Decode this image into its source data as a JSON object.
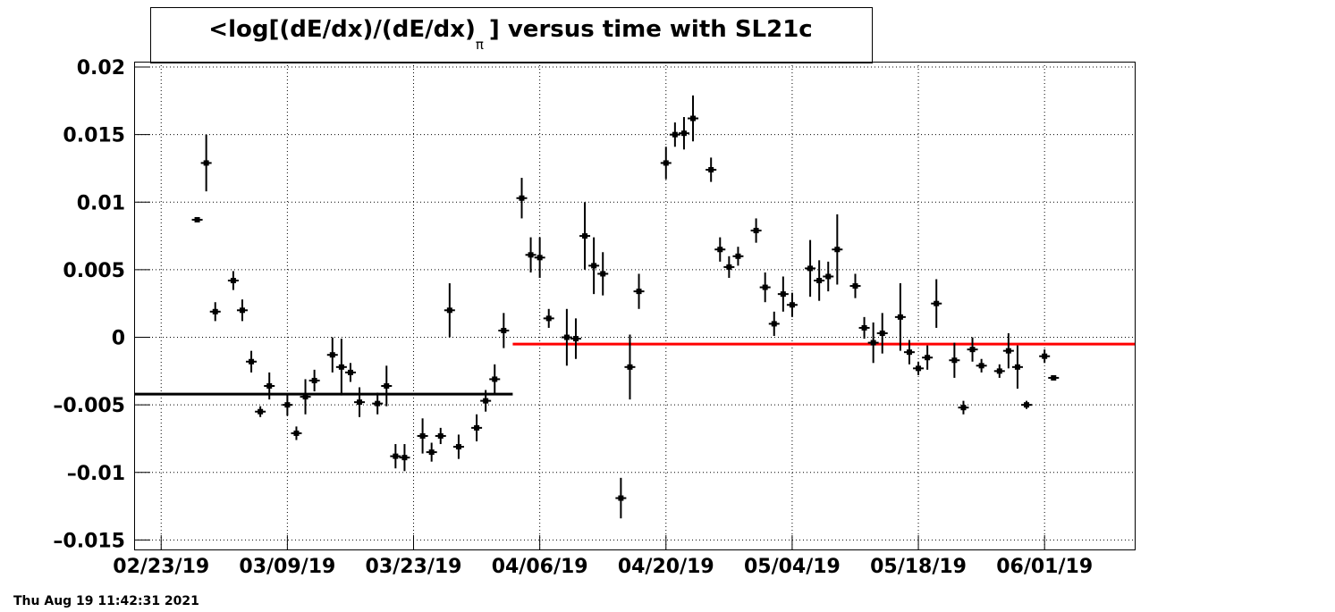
{
  "chart_data": {
    "type": "errorbar",
    "title": "<log[(dE/dx)/(dE/dx)",
    "title_subscript": "π",
    "title_end": "] versus time with SL21c",
    "footer": "Thu Aug 19 11:42:31 2021",
    "xlim": [
      "02/20/19",
      "06/11/19"
    ],
    "xticks": [
      "02/23/19",
      "03/09/19",
      "03/23/19",
      "04/06/19",
      "04/20/19",
      "05/04/19",
      "05/18/19",
      "06/01/19"
    ],
    "ylim": [
      -0.0157,
      0.0204
    ],
    "yticks": [
      {
        "value": -0.015,
        "label": "–0.015"
      },
      {
        "value": -0.01,
        "label": "–0.01"
      },
      {
        "value": -0.005,
        "label": "–0.005"
      },
      0,
      0.005,
      0.01,
      0.015,
      0.02
    ],
    "grid": true,
    "series": [
      {
        "color": "#000000",
        "x": [
          "02/27/19",
          "02/28/19",
          "03/01/19",
          "03/03/19",
          "03/04/19",
          "03/05/19",
          "03/06/19",
          "03/07/19",
          "03/09/19",
          "03/10/19",
          "03/11/19",
          "03/12/19",
          "03/14/19",
          "03/15/19",
          "03/16/19",
          "03/17/19",
          "03/19/19",
          "03/20/19",
          "03/21/19",
          "03/22/19",
          "03/24/19",
          "03/25/19",
          "03/26/19",
          "03/27/19",
          "03/28/19",
          "03/30/19",
          "03/31/19",
          "04/01/19",
          "04/02/19",
          "04/04/19",
          "04/05/19",
          "04/06/19",
          "04/07/19",
          "04/09/19",
          "04/10/19",
          "04/11/19",
          "04/12/19",
          "04/13/19",
          "04/15/19",
          "04/16/19",
          "04/17/19",
          "04/20/19",
          "04/21/19",
          "04/22/19",
          "04/23/19",
          "04/25/19",
          "04/26/19",
          "04/27/19",
          "04/28/19",
          "04/30/19",
          "05/01/19",
          "05/02/19",
          "05/03/19",
          "05/04/19",
          "05/06/19",
          "05/07/19",
          "05/08/19",
          "05/09/19",
          "05/11/19",
          "05/12/19",
          "05/13/19",
          "05/14/19",
          "05/16/19",
          "05/17/19",
          "05/18/19",
          "05/19/19",
          "05/20/19",
          "05/22/19",
          "05/23/19",
          "05/24/19",
          "05/25/19",
          "05/27/19",
          "05/28/19",
          "05/29/19",
          "05/30/19",
          "06/01/19",
          "06/02/19"
        ],
        "values": [
          0.0087,
          0.0129,
          0.0019,
          0.0042,
          0.002,
          -0.0018,
          -0.0055,
          -0.0036,
          -0.005,
          -0.0071,
          -0.0044,
          -0.0032,
          -0.0013,
          -0.0022,
          -0.0026,
          -0.0048,
          -0.0049,
          -0.0036,
          -0.0088,
          -0.0089,
          -0.0073,
          -0.0085,
          -0.0073,
          0.002,
          -0.0081,
          -0.0067,
          -0.0047,
          -0.0031,
          0.0005,
          0.0103,
          0.0061,
          0.0059,
          0.0014,
          0,
          -0.0001,
          0.0075,
          0.0053,
          0.0047,
          -0.0119,
          -0.0022,
          0.0034,
          0.0129,
          0.015,
          0.0151,
          0.0162,
          0.0124,
          0.0065,
          0.0052,
          0.006,
          0.0079,
          0.0037,
          0.001,
          0.0032,
          0.0024,
          0.0051,
          0.0042,
          0.0045,
          0.0065,
          0.0038,
          0.0007,
          -0.0004,
          0.0003,
          0.0015,
          -0.0011,
          -0.0023,
          -0.0015,
          0.0025,
          -0.0017,
          -0.0052,
          -0.0009,
          -0.0021,
          -0.0025,
          -0.001,
          -0.0022,
          -0.005,
          -0.0014,
          -0.003
        ],
        "errors": [
          0.0001,
          0.0021,
          0.0007,
          0.0007,
          0.0008,
          0.0008,
          0.0004,
          0.001,
          0.0008,
          0.0005,
          0.0013,
          0.0008,
          0.0013,
          0.0021,
          0.0007,
          0.0011,
          0.0008,
          0.0015,
          0.0009,
          0.001,
          0.0013,
          0.0007,
          0.0006,
          0.002,
          0.0009,
          0.001,
          0.0008,
          0.0011,
          0.0013,
          0.0015,
          0.0013,
          0.0015,
          0.0007,
          0.0021,
          0.0015,
          0.0025,
          0.0021,
          0.0016,
          0.0015,
          0.0024,
          0.0013,
          0.0012,
          0.0009,
          0.0012,
          0.0017,
          0.0009,
          0.0009,
          0.0008,
          0.0007,
          0.0009,
          0.0011,
          0.0009,
          0.0013,
          0.0009,
          0.0021,
          0.0015,
          0.0011,
          0.0026,
          0.0009,
          0.0008,
          0.0015,
          0.0015,
          0.0025,
          0.0009,
          0.0005,
          0.0009,
          0.0018,
          0.0013,
          0.0005,
          0.0009,
          0.0005,
          0.0005,
          0.0013,
          0.0016,
          0.0003,
          0.0005,
          0.0001
        ]
      }
    ],
    "fits": [
      {
        "color": "#000000",
        "x": [
          "02/20/19",
          "04/03/19"
        ],
        "value": -0.0042
      },
      {
        "color": "#ff0000",
        "x": [
          "04/03/19",
          "06/11/19"
        ],
        "value": -0.0005
      }
    ]
  }
}
